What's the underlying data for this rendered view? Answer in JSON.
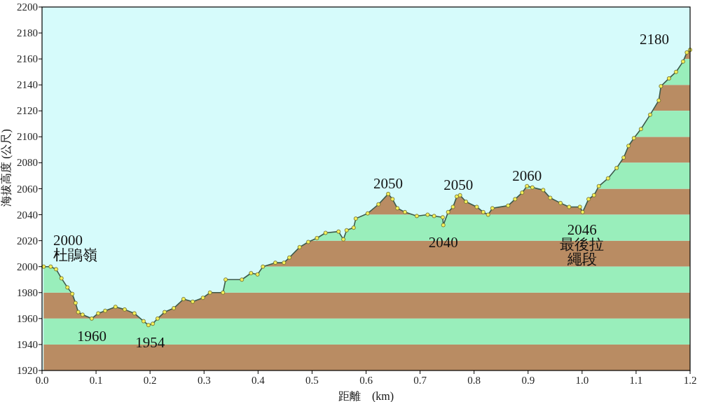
{
  "chart_data": {
    "type": "area",
    "xlabel": "距離　(km)",
    "ylabel": "海拔高度 (公尺)",
    "xlim": [
      0,
      1.2
    ],
    "ylim": [
      1920,
      2200
    ],
    "xticks": [
      {
        "value": 0,
        "label": "0.0"
      },
      {
        "value": 0.1,
        "label": "0.1"
      },
      {
        "value": 0.2,
        "label": "0.2"
      },
      {
        "value": 0.3,
        "label": "0.3"
      },
      {
        "value": 0.4,
        "label": "0.4"
      },
      {
        "value": 0.5,
        "label": "0.5"
      },
      {
        "value": 0.6,
        "label": "0.6"
      },
      {
        "value": 0.7,
        "label": "0.7"
      },
      {
        "value": 0.8,
        "label": "0.8"
      },
      {
        "value": 0.9,
        "label": "0.9"
      },
      {
        "value": 1.0,
        "label": "1.0"
      },
      {
        "value": 1.1,
        "label": "1.1"
      },
      {
        "value": 1.2,
        "label": "1.2"
      }
    ],
    "yticks": [
      1920,
      1940,
      1960,
      1980,
      2000,
      2020,
      2040,
      2060,
      2080,
      2100,
      2120,
      2140,
      2160,
      2180,
      2200
    ],
    "marker": "circle",
    "line_style": "solid",
    "grid": false,
    "series": [
      {
        "color": "#99eebb",
        "x": [
          0.003,
          0.016,
          0.026,
          0.036,
          0.047,
          0.056,
          0.062,
          0.067,
          0.075,
          0.092,
          0.104,
          0.117,
          0.136,
          0.153,
          0.171,
          0.188,
          0.197,
          0.205,
          0.214,
          0.227,
          0.244,
          0.262,
          0.279,
          0.298,
          0.311,
          0.335,
          0.34,
          0.37,
          0.387,
          0.399,
          0.409,
          0.432,
          0.448,
          0.458,
          0.477,
          0.493,
          0.509,
          0.525,
          0.549,
          0.558,
          0.564,
          0.577,
          0.581,
          0.603,
          0.623,
          0.641,
          0.649,
          0.658,
          0.672,
          0.694,
          0.714,
          0.726,
          0.742,
          0.743,
          0.752,
          0.761,
          0.768,
          0.774,
          0.785,
          0.805,
          0.817,
          0.826,
          0.834,
          0.863,
          0.876,
          0.889,
          0.898,
          0.908,
          0.928,
          0.941,
          0.96,
          0.976,
          0.996,
          1.001,
          1.012,
          1.022,
          1.031,
          1.048,
          1.064,
          1.077,
          1.086,
          1.096,
          1.109,
          1.126,
          1.142,
          1.146,
          1.161,
          1.174,
          1.187,
          1.194,
          1.2
        ],
        "values": [
          2000,
          2000,
          1998,
          1991,
          1984,
          1979,
          1972,
          1965,
          1963,
          1960,
          1964,
          1966,
          1969,
          1967,
          1964,
          1958,
          1955,
          1956,
          1960,
          1965,
          1968,
          1975,
          1973,
          1976,
          1980,
          1980,
          1990,
          1990,
          1995,
          1994,
          2000,
          2003,
          2003,
          2007,
          2015,
          2019,
          2022,
          2026,
          2027,
          2021,
          2028,
          2030,
          2037,
          2041,
          2048,
          2056,
          2052,
          2045,
          2042,
          2039,
          2040,
          2039,
          2038,
          2032,
          2042,
          2046,
          2054,
          2055,
          2050,
          2046,
          2042,
          2040,
          2045,
          2047,
          2052,
          2057,
          2062,
          2061,
          2059,
          2053,
          2049,
          2046,
          2046,
          2042,
          2052,
          2055,
          2062,
          2068,
          2076,
          2084,
          2093,
          2099,
          2106,
          2117,
          2128,
          2139,
          2145,
          2150,
          2158,
          2165,
          2167
        ]
      }
    ],
    "bands": [
      {
        "axis": "y",
        "from": 1920,
        "to": 1940,
        "color": "#b98c63"
      },
      {
        "axis": "y",
        "from": 1960,
        "to": 1980,
        "color": "#b98c63"
      },
      {
        "axis": "y",
        "from": 2000,
        "to": 2020,
        "color": "#b98c63"
      },
      {
        "axis": "y",
        "from": 2040,
        "to": 2060,
        "color": "#b98c63"
      },
      {
        "axis": "y",
        "from": 2080,
        "to": 2100,
        "color": "#b98c63"
      },
      {
        "axis": "y",
        "from": 2120,
        "to": 2140,
        "color": "#b98c63"
      },
      {
        "axis": "y",
        "from": 2160,
        "to": 2180,
        "color": "#b98c63"
      }
    ],
    "annotations": [
      {
        "text": "2000\n杜鵑嶺",
        "x": 0.0,
        "y": 2000
      },
      {
        "text": "1960",
        "x": 0.092,
        "y": 1960
      },
      {
        "text": "1954",
        "x": 0.2,
        "y": 1955
      },
      {
        "text": "2050",
        "x": 0.641,
        "y": 2056
      },
      {
        "text": "2040",
        "x": 0.743,
        "y": 2032
      },
      {
        "text": "2050",
        "x": 0.771,
        "y": 2055
      },
      {
        "text": "2060",
        "x": 0.898,
        "y": 2062
      },
      {
        "text": "2046\n最後拉繩段",
        "x": 1.0,
        "y": 2042
      },
      {
        "text": "2180",
        "x": 1.2,
        "y": 2167
      }
    ]
  }
}
